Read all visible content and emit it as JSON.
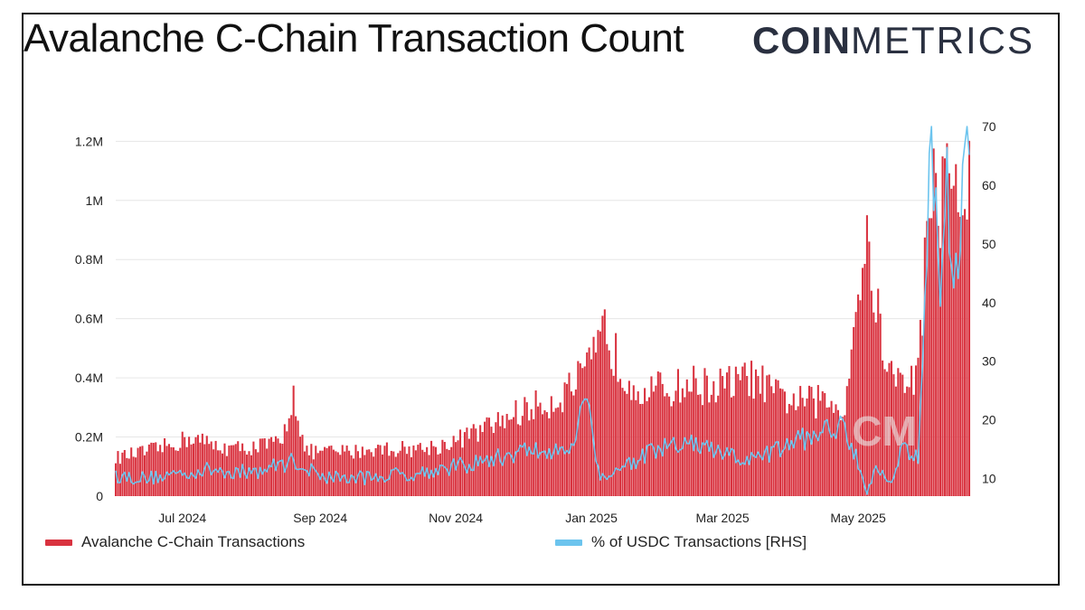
{
  "title": "Avalanche C-Chain Transaction Count",
  "logo": {
    "bold": "COIN",
    "light": "METRICS"
  },
  "watermark": "CM",
  "colors": {
    "bars": "#d9323f",
    "line": "#6cc4ee",
    "grid": "#e6e6e6"
  },
  "chart_data": {
    "type": "bar",
    "y_left": {
      "min": 0,
      "max": 1250000,
      "ticks": [
        0,
        200000,
        400000,
        600000,
        800000,
        1000000,
        1200000
      ],
      "tick_labels": [
        "0",
        "0.2M",
        "0.4M",
        "0.6M",
        "0.8M",
        "1M",
        "1.2M"
      ]
    },
    "y_right": {
      "min": 7,
      "max": 70,
      "ticks": [
        10,
        20,
        30,
        40,
        50,
        60,
        70
      ],
      "tick_labels": [
        "10",
        "20",
        "30",
        "40",
        "50",
        "60",
        "70"
      ]
    },
    "x_axis": {
      "start": "2024-06-01",
      "end": "2025-06-20",
      "tick_labels": [
        "Jul 2024",
        "Sep 2024",
        "Nov 2024",
        "Jan 2025",
        "Mar 2025",
        "May 2025"
      ],
      "tick_dates": [
        "2024-07-01",
        "2024-09-01",
        "2024-11-01",
        "2025-01-01",
        "2025-03-01",
        "2025-05-01"
      ]
    },
    "grid": true,
    "legend_position": "bottom",
    "series": [
      {
        "name": "Avalanche C-Chain Transactions",
        "type": "bar",
        "axis": "left",
        "points": [
          [
            "2024-06-01",
            130000
          ],
          [
            "2024-06-15",
            150000
          ],
          [
            "2024-06-25",
            170000
          ],
          [
            "2024-07-05",
            200000
          ],
          [
            "2024-07-15",
            170000
          ],
          [
            "2024-07-25",
            160000
          ],
          [
            "2024-08-05",
            170000
          ],
          [
            "2024-08-15",
            180000
          ],
          [
            "2024-08-20",
            360000
          ],
          [
            "2024-08-25",
            150000
          ],
          [
            "2024-09-05",
            150000
          ],
          [
            "2024-09-15",
            150000
          ],
          [
            "2024-09-25",
            160000
          ],
          [
            "2024-10-05",
            160000
          ],
          [
            "2024-10-15",
            160000
          ],
          [
            "2024-10-25",
            170000
          ],
          [
            "2024-11-05",
            200000
          ],
          [
            "2024-11-15",
            230000
          ],
          [
            "2024-11-25",
            270000
          ],
          [
            "2024-12-05",
            300000
          ],
          [
            "2024-12-15",
            320000
          ],
          [
            "2024-12-25",
            380000
          ],
          [
            "2025-01-01",
            440000
          ],
          [
            "2025-01-07",
            560000
          ],
          [
            "2025-01-15",
            420000
          ],
          [
            "2025-01-25",
            360000
          ],
          [
            "2025-02-05",
            360000
          ],
          [
            "2025-02-15",
            380000
          ],
          [
            "2025-02-25",
            370000
          ],
          [
            "2025-03-05",
            380000
          ],
          [
            "2025-03-15",
            400000
          ],
          [
            "2025-03-25",
            340000
          ],
          [
            "2025-04-05",
            320000
          ],
          [
            "2025-04-15",
            320000
          ],
          [
            "2025-04-25",
            300000
          ],
          [
            "2025-05-01",
            720000
          ],
          [
            "2025-05-06",
            840000
          ],
          [
            "2025-05-10",
            600000
          ],
          [
            "2025-05-15",
            420000
          ],
          [
            "2025-05-20",
            380000
          ],
          [
            "2025-05-28",
            420000
          ],
          [
            "2025-06-03",
            1100000
          ],
          [
            "2025-06-08",
            1000000
          ],
          [
            "2025-06-12",
            1150000
          ],
          [
            "2025-06-16",
            950000
          ],
          [
            "2025-06-20",
            1050000
          ]
        ]
      },
      {
        "name": "% of USDC Transactions [RHS]",
        "type": "line",
        "axis": "right",
        "points": [
          [
            "2024-06-01",
            10.5
          ],
          [
            "2024-06-15",
            10
          ],
          [
            "2024-07-01",
            11
          ],
          [
            "2024-07-15",
            11.5
          ],
          [
            "2024-08-01",
            11
          ],
          [
            "2024-08-20",
            13
          ],
          [
            "2024-09-01",
            10.5
          ],
          [
            "2024-09-15",
            10
          ],
          [
            "2024-10-01",
            10.5
          ],
          [
            "2024-10-15",
            11
          ],
          [
            "2024-11-01",
            12
          ],
          [
            "2024-11-15",
            13
          ],
          [
            "2024-11-25",
            14
          ],
          [
            "2024-12-05",
            15
          ],
          [
            "2024-12-15",
            14
          ],
          [
            "2024-12-25",
            17
          ],
          [
            "2024-12-29",
            25
          ],
          [
            "2025-01-01",
            19
          ],
          [
            "2025-01-05",
            10
          ],
          [
            "2025-01-10",
            11
          ],
          [
            "2025-01-20",
            13
          ],
          [
            "2025-02-01",
            15
          ],
          [
            "2025-02-15",
            16
          ],
          [
            "2025-03-01",
            14
          ],
          [
            "2025-03-15",
            13
          ],
          [
            "2025-04-01",
            16
          ],
          [
            "2025-04-15",
            18
          ],
          [
            "2025-04-25",
            19
          ],
          [
            "2025-05-01",
            13
          ],
          [
            "2025-05-05",
            8
          ],
          [
            "2025-05-10",
            12
          ],
          [
            "2025-05-15",
            9
          ],
          [
            "2025-05-20",
            15
          ],
          [
            "2025-05-28",
            14
          ],
          [
            "2025-06-01",
            50
          ],
          [
            "2025-06-03",
            70
          ],
          [
            "2025-06-07",
            40
          ],
          [
            "2025-06-10",
            60
          ],
          [
            "2025-06-13",
            40
          ],
          [
            "2025-06-16",
            55
          ],
          [
            "2025-06-20",
            70
          ]
        ]
      }
    ]
  },
  "legend": [
    {
      "label": "Avalanche C-Chain Transactions",
      "color": "#d9323f"
    },
    {
      "label": "% of USDC Transactions [RHS]",
      "color": "#6cc4ee"
    }
  ]
}
